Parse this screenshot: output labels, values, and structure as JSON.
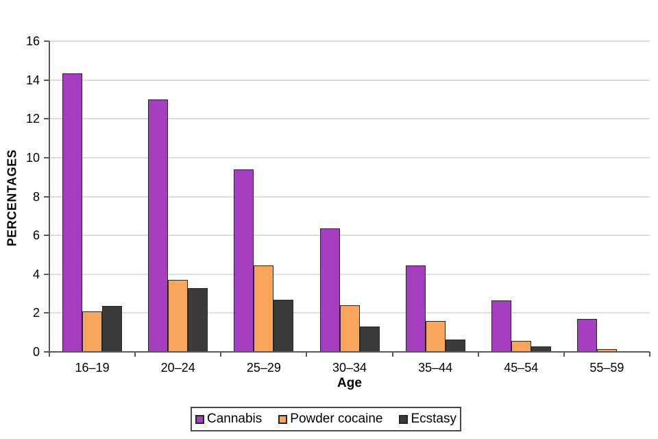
{
  "chart_data": {
    "type": "bar",
    "title": "",
    "categories": [
      "16–19",
      "20–24",
      "25–29",
      "30–34",
      "35–44",
      "45–54",
      "55–59"
    ],
    "series": [
      {
        "name": "Cannabis",
        "color": "#a53ec1",
        "values": [
          14.35,
          13.0,
          9.4,
          6.35,
          4.45,
          2.65,
          1.7
        ]
      },
      {
        "name": "Powder cocaine",
        "color": "#faa55c",
        "values": [
          2.1,
          3.7,
          4.45,
          2.4,
          1.6,
          0.55,
          0.15
        ]
      },
      {
        "name": "Ecstasy",
        "color": "#3b3b3b",
        "values": [
          2.35,
          3.3,
          2.7,
          1.3,
          0.65,
          0.3,
          0.05
        ]
      }
    ],
    "xlabel": "Age",
    "ylabel": "PERCENTAGES",
    "ylim": [
      0,
      16
    ],
    "ytick_step": 2,
    "yticks": [
      0,
      2,
      4,
      6,
      8,
      10,
      12,
      14,
      16
    ],
    "grid": true,
    "legend_position": "bottom"
  },
  "colors": {
    "gridline": "#dcdcdc",
    "axis": "#595959",
    "bar_border": "#262626",
    "background": "#ffffff",
    "legend_border": "#4a4a4a"
  }
}
